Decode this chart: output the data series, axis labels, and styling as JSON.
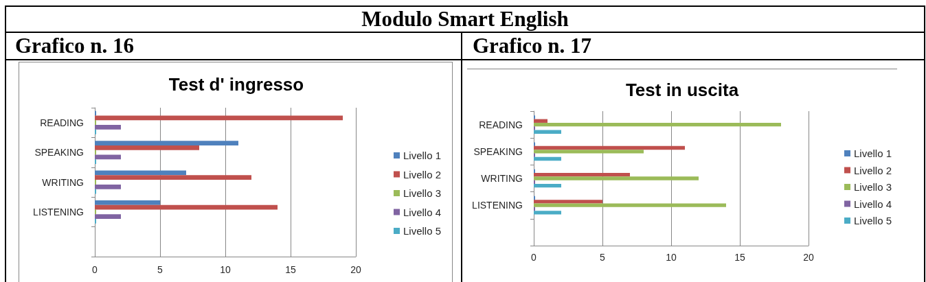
{
  "chart_data": [
    {
      "type": "bar",
      "orientation": "horizontal",
      "title": "Test d' ingresso",
      "annotations": [
        "Modulo Smart English",
        "Grafico n. 16"
      ],
      "categories": [
        "READING",
        "SPEAKING",
        "WRITING",
        "LISTENING",
        null
      ],
      "series": [
        {
          "name": "Livello 1",
          "color": "#4f81bd",
          "values": [
            0,
            11,
            7,
            5,
            null
          ]
        },
        {
          "name": "Livello 2",
          "color": "#c0504d",
          "values": [
            19,
            8,
            12,
            14,
            null
          ]
        },
        {
          "name": "Livello 3",
          "color": "#9bbb59",
          "values": [
            0,
            0,
            0,
            0,
            null
          ]
        },
        {
          "name": "Livello 4",
          "color": "#8064a2",
          "values": [
            2,
            2,
            2,
            2,
            null
          ]
        },
        {
          "name": "Livello 5",
          "color": "#4bacc6",
          "values": [
            0,
            0,
            0,
            0,
            null
          ]
        }
      ],
      "xlim": [
        0,
        20
      ],
      "xticks": [
        0,
        5,
        10,
        15,
        20
      ],
      "grid": "x",
      "legend": "right"
    },
    {
      "type": "bar",
      "orientation": "horizontal",
      "title": "Test in uscita",
      "annotations": [
        "Grafico n. 17"
      ],
      "categories": [
        "READING",
        "SPEAKING",
        "WRITING",
        "LISTENING",
        null
      ],
      "series": [
        {
          "name": "Livello 1",
          "color": "#4f81bd",
          "values": [
            0,
            0,
            0,
            0,
            null
          ]
        },
        {
          "name": "Livello 2",
          "color": "#c0504d",
          "values": [
            1,
            11,
            7,
            5,
            null
          ]
        },
        {
          "name": "Livello 3",
          "color": "#9bbb59",
          "values": [
            18,
            8,
            12,
            14,
            null
          ]
        },
        {
          "name": "Livello 4",
          "color": "#8064a2",
          "values": [
            0,
            0,
            0,
            0,
            null
          ]
        },
        {
          "name": "Livello 5",
          "color": "#4bacc6",
          "values": [
            2,
            2,
            2,
            2,
            null
          ]
        }
      ],
      "xlim": [
        0,
        20
      ],
      "xticks": [
        0,
        5,
        10,
        15,
        20
      ],
      "grid": "x",
      "legend": "right"
    }
  ]
}
